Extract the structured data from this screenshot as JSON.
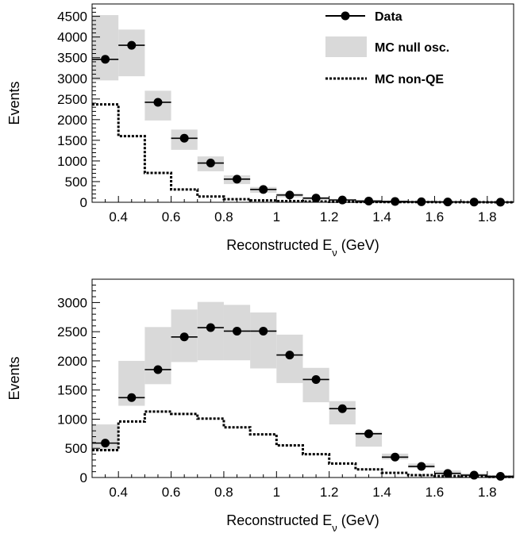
{
  "colors": {
    "band": "#d9d9d9",
    "data": "#000000",
    "nonqe": "#000000"
  },
  "legend": {
    "data_label": "Data",
    "band_label": "MC null osc.",
    "nonqe_label": "MC non-QE"
  },
  "chart_data": [
    {
      "type": "histogram",
      "xlabel_main": "Reconstructed E",
      "xlabel_sub": "ν",
      "xlabel_unit": " (GeV)",
      "ylabel": "Events",
      "xlim": [
        0.3,
        1.9
      ],
      "ylim": [
        0,
        4800
      ],
      "x_ticks": [
        0.4,
        0.6,
        0.8,
        1,
        1.2,
        1.4,
        1.6,
        1.8
      ],
      "x_tick_labels": [
        "0.4",
        "0.6",
        "0.8",
        "1",
        "1.2",
        "1.4",
        "1.6",
        "1.8"
      ],
      "y_ticks": [
        0,
        500,
        1000,
        1500,
        2000,
        2500,
        3000,
        3500,
        4000,
        4500
      ],
      "y_tick_labels": [
        "0",
        "500",
        "1000",
        "1500",
        "2000",
        "2500",
        "3000",
        "3500",
        "4000",
        "4500"
      ],
      "bins": [
        0.3,
        0.4,
        0.5,
        0.6,
        0.7,
        0.8,
        0.9,
        1.0,
        1.1,
        1.2,
        1.3,
        1.4,
        1.5,
        1.6,
        1.7,
        1.8,
        1.9
      ],
      "data_points": [
        {
          "x": 0.35,
          "y": 3460
        },
        {
          "x": 0.45,
          "y": 3800
        },
        {
          "x": 0.55,
          "y": 2420
        },
        {
          "x": 0.65,
          "y": 1550
        },
        {
          "x": 0.75,
          "y": 950
        },
        {
          "x": 0.85,
          "y": 560
        },
        {
          "x": 0.95,
          "y": 310
        },
        {
          "x": 1.05,
          "y": 175
        },
        {
          "x": 1.15,
          "y": 100
        },
        {
          "x": 1.25,
          "y": 55
        },
        {
          "x": 1.35,
          "y": 30
        },
        {
          "x": 1.45,
          "y": 20
        },
        {
          "x": 1.55,
          "y": 12
        },
        {
          "x": 1.65,
          "y": 8
        },
        {
          "x": 1.75,
          "y": 5
        },
        {
          "x": 1.85,
          "y": 3
        }
      ],
      "mc_null_osc_band": [
        [
          2950,
          4530
        ],
        [
          3050,
          4180
        ],
        [
          1980,
          2700
        ],
        [
          1270,
          1760
        ],
        [
          750,
          1110
        ],
        [
          440,
          650
        ],
        [
          230,
          370
        ],
        [
          120,
          220
        ],
        [
          60,
          130
        ],
        [
          30,
          80
        ],
        [
          10,
          50
        ],
        [
          5,
          35
        ],
        [
          0,
          25
        ],
        [
          0,
          20
        ],
        [
          0,
          15
        ],
        [
          0,
          10
        ]
      ],
      "mc_non_qe": [
        2370,
        1600,
        710,
        310,
        140,
        75,
        45,
        30,
        20,
        12,
        8,
        5,
        4,
        3,
        2,
        1
      ]
    },
    {
      "type": "histogram",
      "xlabel_main": "Reconstructed E",
      "xlabel_sub": "ν",
      "xlabel_unit": " (GeV)",
      "ylabel": "Events",
      "xlim": [
        0.3,
        1.9
      ],
      "ylim": [
        0,
        3400
      ],
      "x_ticks": [
        0.4,
        0.6,
        0.8,
        1,
        1.2,
        1.4,
        1.6,
        1.8
      ],
      "x_tick_labels": [
        "0.4",
        "0.6",
        "0.8",
        "1",
        "1.2",
        "1.4",
        "1.6",
        "1.8"
      ],
      "y_ticks": [
        0,
        500,
        1000,
        1500,
        2000,
        2500,
        3000
      ],
      "y_tick_labels": [
        "0",
        "500",
        "1000",
        "1500",
        "2000",
        "2500",
        "3000"
      ],
      "bins": [
        0.3,
        0.4,
        0.5,
        0.6,
        0.7,
        0.8,
        0.9,
        1.0,
        1.1,
        1.2,
        1.3,
        1.4,
        1.5,
        1.6,
        1.7,
        1.8,
        1.9
      ],
      "data_points": [
        {
          "x": 0.35,
          "y": 590
        },
        {
          "x": 0.45,
          "y": 1370
        },
        {
          "x": 0.55,
          "y": 1850
        },
        {
          "x": 0.65,
          "y": 2410
        },
        {
          "x": 0.75,
          "y": 2570
        },
        {
          "x": 0.85,
          "y": 2510
        },
        {
          "x": 0.95,
          "y": 2510
        },
        {
          "x": 1.05,
          "y": 2100
        },
        {
          "x": 1.15,
          "y": 1680
        },
        {
          "x": 1.25,
          "y": 1180
        },
        {
          "x": 1.35,
          "y": 750
        },
        {
          "x": 1.45,
          "y": 350
        },
        {
          "x": 1.55,
          "y": 190
        },
        {
          "x": 1.65,
          "y": 70
        },
        {
          "x": 1.75,
          "y": 40
        },
        {
          "x": 1.85,
          "y": 20
        }
      ],
      "mc_null_osc_band": [
        [
          460,
          910
        ],
        [
          1230,
          2000
        ],
        [
          1600,
          2580
        ],
        [
          1980,
          2880
        ],
        [
          2010,
          3010
        ],
        [
          2010,
          2960
        ],
        [
          1870,
          2830
        ],
        [
          1620,
          2450
        ],
        [
          1290,
          1880
        ],
        [
          910,
          1310
        ],
        [
          530,
          780
        ],
        [
          310,
          410
        ],
        [
          160,
          240
        ],
        [
          60,
          120
        ],
        [
          30,
          70
        ],
        [
          10,
          40
        ]
      ],
      "mc_non_qe": [
        470,
        960,
        1130,
        1090,
        1010,
        860,
        740,
        550,
        400,
        240,
        140,
        80,
        40,
        25,
        15,
        10
      ]
    }
  ]
}
